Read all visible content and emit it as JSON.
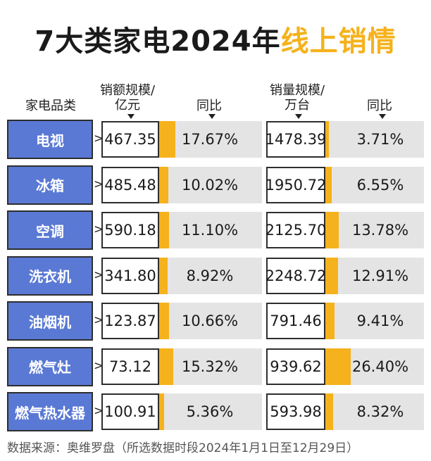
{
  "title": {
    "main": "7大类家电2024年",
    "accent": "线上销情"
  },
  "headers": {
    "category": "家电品类",
    "sales_amount": "销额规模/",
    "sales_amount_unit": "亿元",
    "yoy": "同比",
    "sales_volume": "销量规模/",
    "sales_volume_unit": "万台",
    "yoy2": "同比"
  },
  "rows": [
    {
      "category": "电视",
      "amount": "467.35",
      "amount_yoy": "17.67%",
      "volume": "1478.39",
      "volume_yoy": "3.71%"
    },
    {
      "category": "冰箱",
      "amount": "485.48",
      "amount_yoy": "10.02%",
      "volume": "1950.72",
      "volume_yoy": "6.55%"
    },
    {
      "category": "空调",
      "amount": "590.18",
      "amount_yoy": "11.10%",
      "volume": "2125.70",
      "volume_yoy": "13.78%"
    },
    {
      "category": "洗衣机",
      "amount": "341.80",
      "amount_yoy": "8.92%",
      "volume": "2248.72",
      "volume_yoy": "12.91%"
    },
    {
      "category": "油烟机",
      "amount": "123.87",
      "amount_yoy": "10.66%",
      "volume": "791.46",
      "volume_yoy": "9.41%"
    },
    {
      "category": "燃气灶",
      "amount": "73.12",
      "amount_yoy": "15.32%",
      "volume": "939.62",
      "volume_yoy": "26.40%"
    },
    {
      "category": "燃气热水器",
      "amount": "100.91",
      "amount_yoy": "5.36%",
      "volume": "593.98",
      "volume_yoy": "8.32%"
    }
  ],
  "source": "数据来源：奥维罗盘（所选数据时段2024年1月1日至12月29日）",
  "colors": {
    "category_fill": "#5a79d4",
    "bar": "#f5b21c",
    "bar_track": "#e4e4e4",
    "title_accent": "#f5b21c"
  },
  "chart_data": {
    "type": "table",
    "columns": [
      "家电品类",
      "销额规模/亿元",
      "同比",
      "销量规模/万台",
      "同比"
    ],
    "categories": [
      "电视",
      "冰箱",
      "空调",
      "洗衣机",
      "油烟机",
      "燃气灶",
      "燃气热水器"
    ],
    "series": [
      {
        "name": "销额规模/亿元",
        "values": [
          467.35,
          485.48,
          590.18,
          341.8,
          123.87,
          73.12,
          100.91
        ]
      },
      {
        "name": "同比",
        "values": [
          17.67,
          10.02,
          11.1,
          8.92,
          10.66,
          15.32,
          5.36
        ]
      },
      {
        "name": "销量规模/万台",
        "values": [
          1478.39,
          1950.72,
          2125.7,
          2248.72,
          791.46,
          939.62,
          593.98
        ]
      },
      {
        "name": "同比",
        "values": [
          3.71,
          6.55,
          13.78,
          12.91,
          9.41,
          26.4,
          8.32
        ]
      }
    ]
  }
}
